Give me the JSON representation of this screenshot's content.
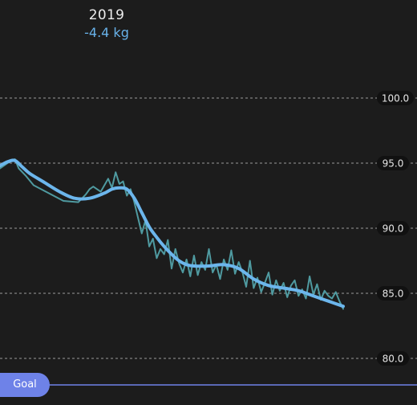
{
  "header": {
    "year": "2019",
    "delta": "-4.4 kg"
  },
  "goal": {
    "label": "Goal"
  },
  "colors": {
    "background": "#1c1c1c",
    "trend": "#6cb6ec",
    "raw": "#4f9aa0",
    "goal": "#6e82e8",
    "grid": "#9a9a9a"
  },
  "chart_data": {
    "type": "line",
    "title": "",
    "xlabel": "",
    "ylabel": "",
    "ylim": [
      79.5,
      104
    ],
    "xlim": [
      0,
      100
    ],
    "yticks": [
      80,
      85,
      90,
      95,
      100
    ],
    "tick_labels": [
      "80.0",
      "85.0",
      "90.0",
      "95.0",
      "100.0"
    ],
    "grid": true,
    "legend": "none",
    "series": [
      {
        "role": "trend",
        "x": [
          0,
          2,
          4,
          6,
          8,
          12,
          16,
          20,
          24,
          28,
          30,
          32,
          34,
          36,
          38,
          40,
          42,
          44,
          46,
          48,
          50,
          52,
          56,
          60,
          64,
          68,
          72,
          76,
          80,
          84,
          88,
          92
        ],
        "values": [
          94.8,
          95.1,
          95.2,
          94.7,
          94.2,
          93.5,
          92.8,
          92.3,
          92.3,
          92.7,
          93.0,
          93.1,
          93.0,
          92.3,
          91.2,
          90.1,
          89.3,
          88.6,
          88.0,
          87.5,
          87.2,
          87.1,
          87.1,
          87.2,
          86.9,
          86.1,
          85.6,
          85.4,
          85.2,
          84.8,
          84.4,
          84.0
        ]
      },
      {
        "role": "raw",
        "x": [
          0,
          2,
          4,
          5,
          7,
          9,
          13,
          17,
          21,
          23,
          24,
          25,
          27,
          29,
          30,
          31,
          32,
          33,
          34,
          35,
          36,
          37,
          38,
          39,
          40,
          41,
          42,
          43,
          44,
          45,
          46,
          47,
          48,
          49,
          50,
          51,
          52,
          53,
          54,
          55,
          56,
          57,
          58,
          59,
          60,
          61,
          62,
          63,
          64,
          65,
          66,
          67,
          68,
          69,
          70,
          71,
          72,
          73,
          74,
          75,
          76,
          77,
          78,
          79,
          80,
          81,
          82,
          83,
          84,
          85,
          86,
          87,
          88,
          89,
          90,
          91,
          92
        ],
        "values": [
          94.6,
          95.0,
          95.3,
          94.6,
          94.0,
          93.3,
          92.7,
          92.1,
          92.0,
          92.6,
          93.0,
          93.2,
          92.8,
          93.8,
          93.1,
          94.3,
          93.4,
          93.6,
          92.5,
          93.0,
          92.0,
          90.8,
          89.6,
          90.6,
          88.6,
          89.2,
          87.7,
          88.4,
          88.0,
          89.1,
          86.9,
          88.4,
          87.3,
          86.6,
          87.6,
          86.3,
          87.9,
          86.4,
          87.4,
          86.8,
          88.4,
          86.6,
          87.2,
          86.1,
          87.6,
          86.8,
          88.3,
          86.5,
          87.4,
          86.6,
          85.5,
          87.5,
          85.4,
          86.2,
          85.1,
          85.8,
          86.6,
          84.9,
          86.0,
          85.2,
          85.8,
          84.7,
          85.6,
          86.0,
          84.8,
          85.3,
          84.6,
          86.3,
          84.9,
          85.7,
          84.5,
          85.2,
          84.8,
          84.6,
          85.1,
          84.4,
          83.8
        ]
      }
    ]
  }
}
